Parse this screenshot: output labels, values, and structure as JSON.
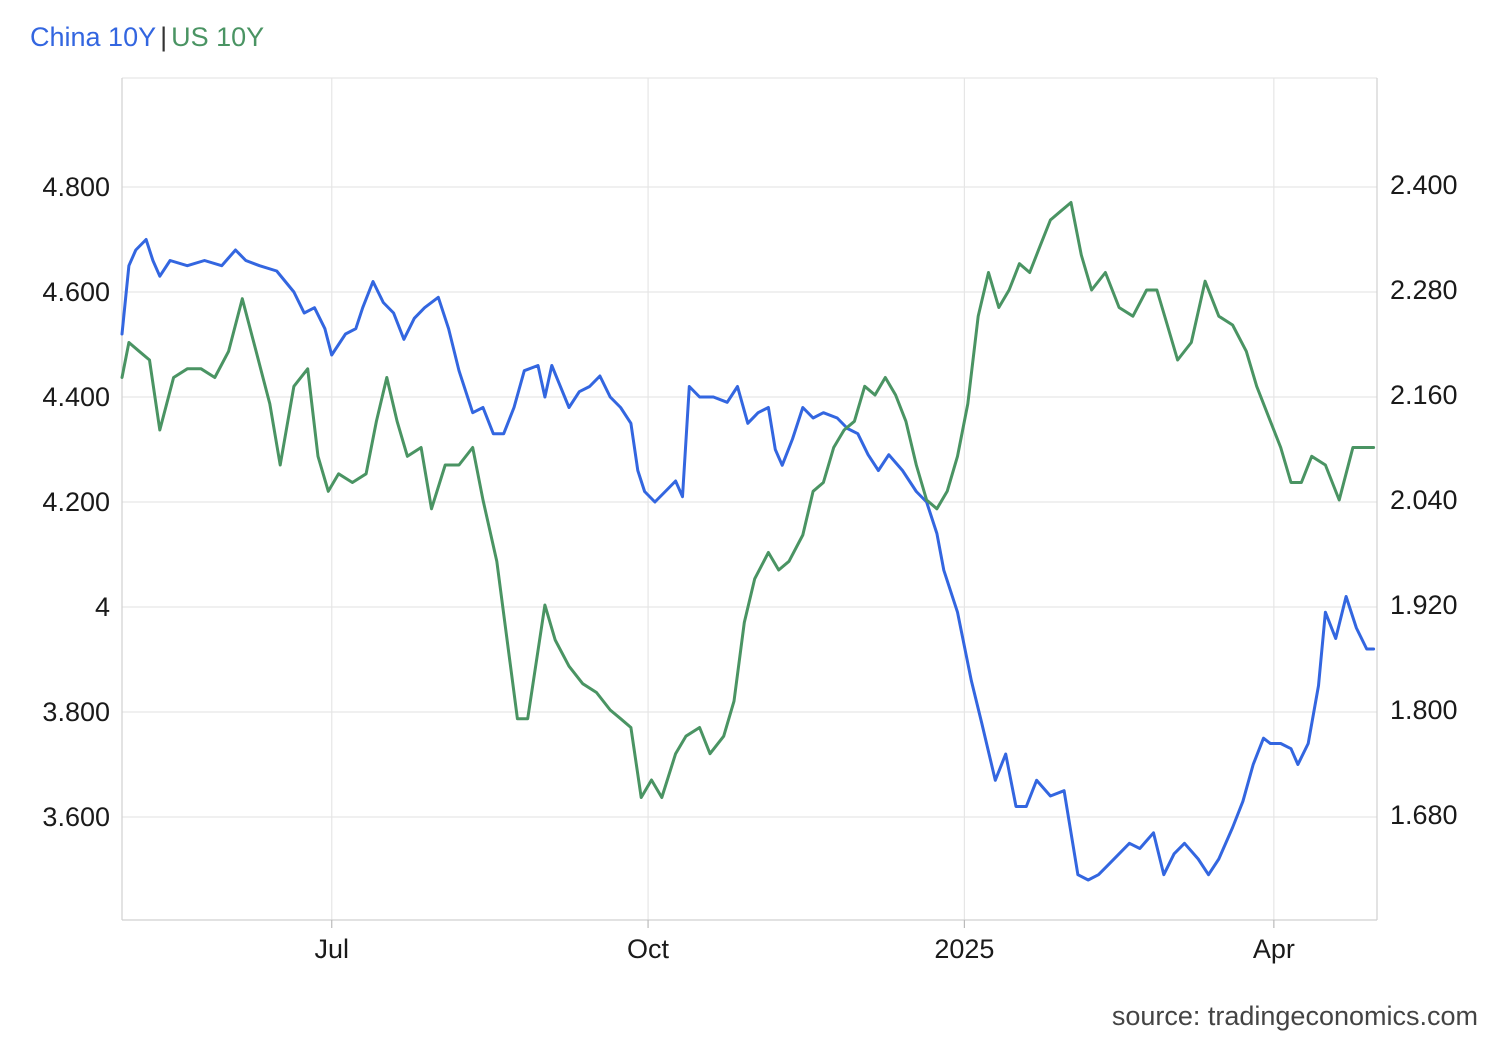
{
  "legend": {
    "china": "China 10Y",
    "separator": "|",
    "us": "US 10Y"
  },
  "source": "source: tradingeconomics.com",
  "colors": {
    "china": "#3366e0",
    "us": "#4a9463",
    "grid": "#e6e6e6"
  },
  "chart_data": {
    "type": "line",
    "title": "",
    "x_axis": {
      "type": "date",
      "range": [
        "2024-05-01",
        "2025-05-01"
      ],
      "ticks": [
        {
          "date": "2024-07-01",
          "label": "Jul"
        },
        {
          "date": "2024-10-01",
          "label": "Oct"
        },
        {
          "date": "2025-01-01",
          "label": "2025"
        },
        {
          "date": "2025-04-01",
          "label": "Apr"
        }
      ]
    },
    "y_left": {
      "range": [
        3.4,
        4.95
      ],
      "ticks": [
        3.6,
        3.8,
        4,
        4.2,
        4.4,
        4.6,
        4.8
      ],
      "tick_labels": [
        "3.600",
        "3.800",
        "4",
        "4.200",
        "4.400",
        "4.600",
        "4.800"
      ]
    },
    "y_right": {
      "range": [
        1.6,
        2.48
      ],
      "ticks": [
        1.68,
        1.8,
        1.92,
        2.04,
        2.16,
        2.28,
        2.4
      ],
      "tick_labels": [
        "1.680",
        "1.800",
        "1.920",
        "2.040",
        "2.160",
        "2.280",
        "2.400"
      ]
    },
    "grid": true,
    "series": [
      {
        "name": "China 10Y",
        "axis": "left",
        "color": "#3366e0",
        "points": [
          [
            "2024-05-01",
            4.52
          ],
          [
            "2024-05-03",
            4.65
          ],
          [
            "2024-05-05",
            4.68
          ],
          [
            "2024-05-08",
            4.7
          ],
          [
            "2024-05-10",
            4.66
          ],
          [
            "2024-05-12",
            4.63
          ],
          [
            "2024-05-15",
            4.66
          ],
          [
            "2024-05-20",
            4.65
          ],
          [
            "2024-05-25",
            4.66
          ],
          [
            "2024-05-30",
            4.65
          ],
          [
            "2024-06-03",
            4.68
          ],
          [
            "2024-06-06",
            4.66
          ],
          [
            "2024-06-10",
            4.65
          ],
          [
            "2024-06-15",
            4.64
          ],
          [
            "2024-06-20",
            4.6
          ],
          [
            "2024-06-23",
            4.56
          ],
          [
            "2024-06-26",
            4.57
          ],
          [
            "2024-06-29",
            4.53
          ],
          [
            "2024-07-01",
            4.48
          ],
          [
            "2024-07-05",
            4.52
          ],
          [
            "2024-07-08",
            4.53
          ],
          [
            "2024-07-10",
            4.57
          ],
          [
            "2024-07-13",
            4.62
          ],
          [
            "2024-07-16",
            4.58
          ],
          [
            "2024-07-19",
            4.56
          ],
          [
            "2024-07-22",
            4.51
          ],
          [
            "2024-07-25",
            4.55
          ],
          [
            "2024-07-28",
            4.57
          ],
          [
            "2024-08-01",
            4.59
          ],
          [
            "2024-08-04",
            4.53
          ],
          [
            "2024-08-07",
            4.45
          ],
          [
            "2024-08-11",
            4.37
          ],
          [
            "2024-08-14",
            4.38
          ],
          [
            "2024-08-17",
            4.33
          ],
          [
            "2024-08-20",
            4.33
          ],
          [
            "2024-08-23",
            4.38
          ],
          [
            "2024-08-26",
            4.45
          ],
          [
            "2024-08-30",
            4.46
          ],
          [
            "2024-09-01",
            4.4
          ],
          [
            "2024-09-03",
            4.46
          ],
          [
            "2024-09-08",
            4.38
          ],
          [
            "2024-09-11",
            4.41
          ],
          [
            "2024-09-14",
            4.42
          ],
          [
            "2024-09-17",
            4.44
          ],
          [
            "2024-09-20",
            4.4
          ],
          [
            "2024-09-23",
            4.38
          ],
          [
            "2024-09-26",
            4.35
          ],
          [
            "2024-09-28",
            4.26
          ],
          [
            "2024-09-30",
            4.22
          ],
          [
            "2024-10-03",
            4.2
          ],
          [
            "2024-10-06",
            4.22
          ],
          [
            "2024-10-09",
            4.24
          ],
          [
            "2024-10-11",
            4.21
          ],
          [
            "2024-10-13",
            4.42
          ],
          [
            "2024-10-16",
            4.4
          ],
          [
            "2024-10-20",
            4.4
          ],
          [
            "2024-10-24",
            4.39
          ],
          [
            "2024-10-27",
            4.42
          ],
          [
            "2024-10-30",
            4.35
          ],
          [
            "2024-11-02",
            4.37
          ],
          [
            "2024-11-05",
            4.38
          ],
          [
            "2024-11-07",
            4.3
          ],
          [
            "2024-11-09",
            4.27
          ],
          [
            "2024-11-12",
            4.32
          ],
          [
            "2024-11-15",
            4.38
          ],
          [
            "2024-11-18",
            4.36
          ],
          [
            "2024-11-21",
            4.37
          ],
          [
            "2024-11-25",
            4.36
          ],
          [
            "2024-11-28",
            4.34
          ],
          [
            "2024-12-01",
            4.33
          ],
          [
            "2024-12-04",
            4.29
          ],
          [
            "2024-12-07",
            4.26
          ],
          [
            "2024-12-10",
            4.29
          ],
          [
            "2024-12-14",
            4.26
          ],
          [
            "2024-12-18",
            4.22
          ],
          [
            "2024-12-21",
            4.2
          ],
          [
            "2024-12-24",
            4.14
          ],
          [
            "2024-12-26",
            4.07
          ],
          [
            "2024-12-30",
            3.99
          ],
          [
            "2025-01-03",
            3.86
          ],
          [
            "2025-01-06",
            3.78
          ],
          [
            "2025-01-10",
            3.67
          ],
          [
            "2025-01-13",
            3.72
          ],
          [
            "2025-01-16",
            3.62
          ],
          [
            "2025-01-19",
            3.62
          ],
          [
            "2025-01-22",
            3.67
          ],
          [
            "2025-01-26",
            3.64
          ],
          [
            "2025-01-30",
            3.65
          ],
          [
            "2025-02-03",
            3.49
          ],
          [
            "2025-02-06",
            3.48
          ],
          [
            "2025-02-09",
            3.49
          ],
          [
            "2025-02-12",
            3.51
          ],
          [
            "2025-02-15",
            3.53
          ],
          [
            "2025-02-18",
            3.55
          ],
          [
            "2025-02-21",
            3.54
          ],
          [
            "2025-02-25",
            3.57
          ],
          [
            "2025-02-28",
            3.49
          ],
          [
            "2025-03-03",
            3.53
          ],
          [
            "2025-03-06",
            3.55
          ],
          [
            "2025-03-10",
            3.52
          ],
          [
            "2025-03-13",
            3.49
          ],
          [
            "2025-03-16",
            3.52
          ],
          [
            "2025-03-20",
            3.58
          ],
          [
            "2025-03-23",
            3.63
          ],
          [
            "2025-03-26",
            3.7
          ],
          [
            "2025-03-29",
            3.75
          ],
          [
            "2025-03-31",
            3.74
          ],
          [
            "2025-04-03",
            3.74
          ],
          [
            "2025-04-06",
            3.73
          ],
          [
            "2025-04-08",
            3.7
          ],
          [
            "2025-04-11",
            3.74
          ],
          [
            "2025-04-14",
            3.85
          ],
          [
            "2025-04-16",
            3.99
          ],
          [
            "2025-04-19",
            3.94
          ],
          [
            "2025-04-22",
            4.02
          ],
          [
            "2025-04-25",
            3.96
          ],
          [
            "2025-04-28",
            3.92
          ],
          [
            "2025-04-30",
            3.92
          ]
        ]
      },
      {
        "name": "US 10Y",
        "axis": "right",
        "color": "#4a9463",
        "points": [
          [
            "2024-05-01",
            2.18
          ],
          [
            "2024-05-03",
            2.22
          ],
          [
            "2024-05-06",
            2.21
          ],
          [
            "2024-05-09",
            2.2
          ],
          [
            "2024-05-12",
            2.12
          ],
          [
            "2024-05-16",
            2.18
          ],
          [
            "2024-05-20",
            2.19
          ],
          [
            "2024-05-24",
            2.19
          ],
          [
            "2024-05-28",
            2.18
          ],
          [
            "2024-06-01",
            2.21
          ],
          [
            "2024-06-05",
            2.27
          ],
          [
            "2024-06-09",
            2.21
          ],
          [
            "2024-06-13",
            2.15
          ],
          [
            "2024-06-16",
            2.08
          ],
          [
            "2024-06-20",
            2.17
          ],
          [
            "2024-06-24",
            2.19
          ],
          [
            "2024-06-27",
            2.09
          ],
          [
            "2024-06-30",
            2.05
          ],
          [
            "2024-07-03",
            2.07
          ],
          [
            "2024-07-07",
            2.06
          ],
          [
            "2024-07-11",
            2.07
          ],
          [
            "2024-07-14",
            2.13
          ],
          [
            "2024-07-17",
            2.18
          ],
          [
            "2024-07-20",
            2.13
          ],
          [
            "2024-07-23",
            2.09
          ],
          [
            "2024-07-27",
            2.1
          ],
          [
            "2024-07-30",
            2.03
          ],
          [
            "2024-08-03",
            2.08
          ],
          [
            "2024-08-07",
            2.08
          ],
          [
            "2024-08-11",
            2.1
          ],
          [
            "2024-08-14",
            2.04
          ],
          [
            "2024-08-18",
            1.97
          ],
          [
            "2024-08-21",
            1.88
          ],
          [
            "2024-08-24",
            1.79
          ],
          [
            "2024-08-27",
            1.79
          ],
          [
            "2024-09-01",
            1.92
          ],
          [
            "2024-09-04",
            1.88
          ],
          [
            "2024-09-08",
            1.85
          ],
          [
            "2024-09-12",
            1.83
          ],
          [
            "2024-09-16",
            1.82
          ],
          [
            "2024-09-20",
            1.8
          ],
          [
            "2024-09-23",
            1.79
          ],
          [
            "2024-09-26",
            1.78
          ],
          [
            "2024-09-29",
            1.7
          ],
          [
            "2024-10-02",
            1.72
          ],
          [
            "2024-10-05",
            1.7
          ],
          [
            "2024-10-09",
            1.75
          ],
          [
            "2024-10-12",
            1.77
          ],
          [
            "2024-10-16",
            1.78
          ],
          [
            "2024-10-19",
            1.75
          ],
          [
            "2024-10-23",
            1.77
          ],
          [
            "2024-10-26",
            1.81
          ],
          [
            "2024-10-29",
            1.9
          ],
          [
            "2024-11-01",
            1.95
          ],
          [
            "2024-11-05",
            1.98
          ],
          [
            "2024-11-08",
            1.96
          ],
          [
            "2024-11-11",
            1.97
          ],
          [
            "2024-11-15",
            2.0
          ],
          [
            "2024-11-18",
            2.05
          ],
          [
            "2024-11-21",
            2.06
          ],
          [
            "2024-11-24",
            2.1
          ],
          [
            "2024-11-27",
            2.12
          ],
          [
            "2024-11-30",
            2.13
          ],
          [
            "2024-12-03",
            2.17
          ],
          [
            "2024-12-06",
            2.16
          ],
          [
            "2024-12-09",
            2.18
          ],
          [
            "2024-12-12",
            2.16
          ],
          [
            "2024-12-15",
            2.13
          ],
          [
            "2024-12-18",
            2.08
          ],
          [
            "2024-12-21",
            2.04
          ],
          [
            "2024-12-24",
            2.03
          ],
          [
            "2024-12-27",
            2.05
          ],
          [
            "2024-12-30",
            2.09
          ],
          [
            "2025-01-02",
            2.15
          ],
          [
            "2025-01-05",
            2.25
          ],
          [
            "2025-01-08",
            2.3
          ],
          [
            "2025-01-11",
            2.26
          ],
          [
            "2025-01-14",
            2.28
          ],
          [
            "2025-01-17",
            2.31
          ],
          [
            "2025-01-20",
            2.3
          ],
          [
            "2025-01-23",
            2.33
          ],
          [
            "2025-01-26",
            2.36
          ],
          [
            "2025-01-29",
            2.37
          ],
          [
            "2025-02-01",
            2.38
          ],
          [
            "2025-02-04",
            2.32
          ],
          [
            "2025-02-07",
            2.28
          ],
          [
            "2025-02-11",
            2.3
          ],
          [
            "2025-02-15",
            2.26
          ],
          [
            "2025-02-19",
            2.25
          ],
          [
            "2025-02-23",
            2.28
          ],
          [
            "2025-02-26",
            2.28
          ],
          [
            "2025-03-01",
            2.24
          ],
          [
            "2025-03-04",
            2.2
          ],
          [
            "2025-03-08",
            2.22
          ],
          [
            "2025-03-12",
            2.29
          ],
          [
            "2025-03-16",
            2.25
          ],
          [
            "2025-03-20",
            2.24
          ],
          [
            "2025-03-24",
            2.21
          ],
          [
            "2025-03-27",
            2.17
          ],
          [
            "2025-03-31",
            2.13
          ],
          [
            "2025-04-03",
            2.1
          ],
          [
            "2025-04-06",
            2.06
          ],
          [
            "2025-04-09",
            2.06
          ],
          [
            "2025-04-12",
            2.09
          ],
          [
            "2025-04-16",
            2.08
          ],
          [
            "2025-04-20",
            2.04
          ],
          [
            "2025-04-24",
            2.1
          ],
          [
            "2025-04-27",
            2.1
          ],
          [
            "2025-04-30",
            2.1
          ]
        ]
      }
    ]
  }
}
